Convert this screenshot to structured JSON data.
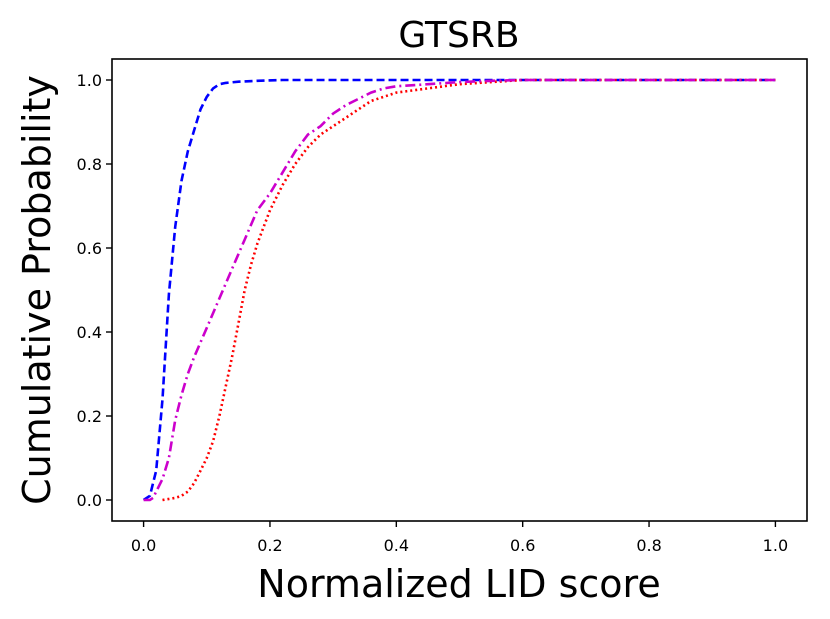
{
  "chart_data": {
    "type": "line",
    "title": "GTSRB",
    "xlabel": "Normalized LID score",
    "ylabel": "Cumulative Probability",
    "xlim": [
      -0.05,
      1.05
    ],
    "ylim": [
      -0.05,
      1.05
    ],
    "xticks": [
      "0.0",
      "0.2",
      "0.4",
      "0.6",
      "0.8",
      "1.0"
    ],
    "yticks": [
      "0.0",
      "0.2",
      "0.4",
      "0.6",
      "0.8",
      "1.0"
    ],
    "grid": false,
    "legend": null,
    "series": [
      {
        "color": "#0000ff",
        "linestyle": "dashed",
        "x": [
          0.0,
          0.01,
          0.02,
          0.03,
          0.04,
          0.05,
          0.06,
          0.07,
          0.08,
          0.09,
          0.1,
          0.11,
          0.12,
          0.13,
          0.15,
          0.18,
          0.22,
          0.3,
          0.5,
          1.0
        ],
        "y": [
          0.0,
          0.01,
          0.07,
          0.24,
          0.49,
          0.65,
          0.76,
          0.83,
          0.88,
          0.93,
          0.96,
          0.98,
          0.99,
          0.993,
          0.996,
          0.998,
          1.0,
          1.0,
          1.0,
          1.0
        ]
      },
      {
        "color": "#ff0000",
        "linestyle": "dotted",
        "x": [
          0.03,
          0.05,
          0.06,
          0.07,
          0.08,
          0.09,
          0.1,
          0.11,
          0.12,
          0.13,
          0.14,
          0.15,
          0.16,
          0.17,
          0.18,
          0.19,
          0.2,
          0.22,
          0.24,
          0.26,
          0.28,
          0.3,
          0.32,
          0.34,
          0.36,
          0.38,
          0.4,
          0.45,
          0.5,
          0.55,
          0.6,
          1.0
        ],
        "y": [
          0.0,
          0.005,
          0.01,
          0.02,
          0.04,
          0.07,
          0.1,
          0.14,
          0.2,
          0.27,
          0.34,
          0.42,
          0.5,
          0.56,
          0.61,
          0.65,
          0.69,
          0.75,
          0.8,
          0.84,
          0.87,
          0.89,
          0.91,
          0.93,
          0.95,
          0.96,
          0.97,
          0.98,
          0.99,
          0.995,
          1.0,
          1.0
        ]
      },
      {
        "color": "#cc00cc",
        "linestyle": "dashdot",
        "x": [
          0.0,
          0.01,
          0.015,
          0.02,
          0.03,
          0.04,
          0.05,
          0.06,
          0.07,
          0.08,
          0.1,
          0.12,
          0.14,
          0.16,
          0.18,
          0.2,
          0.22,
          0.24,
          0.26,
          0.28,
          0.3,
          0.32,
          0.34,
          0.36,
          0.38,
          0.4,
          0.45,
          0.5,
          0.55,
          0.6,
          1.0
        ],
        "y": [
          0.0,
          0.0,
          0.005,
          0.02,
          0.05,
          0.1,
          0.19,
          0.25,
          0.3,
          0.34,
          0.41,
          0.48,
          0.55,
          0.62,
          0.69,
          0.73,
          0.78,
          0.83,
          0.87,
          0.89,
          0.92,
          0.94,
          0.955,
          0.97,
          0.98,
          0.985,
          0.99,
          0.995,
          0.998,
          1.0,
          1.0
        ]
      }
    ]
  }
}
